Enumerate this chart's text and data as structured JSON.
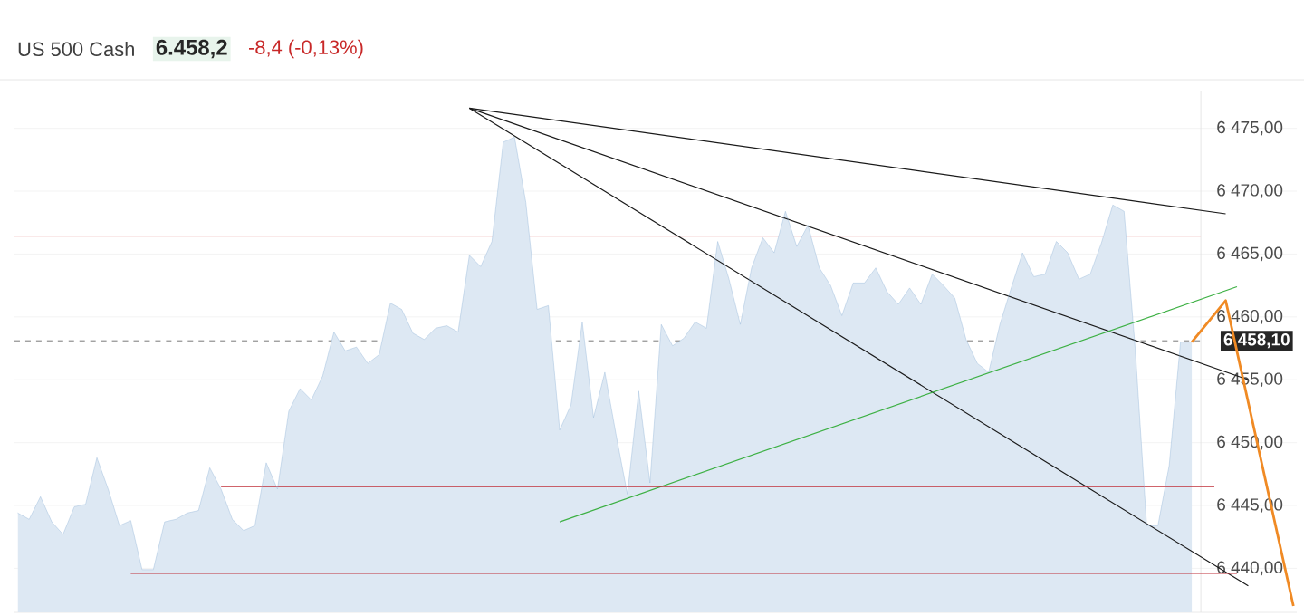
{
  "chart_data": {
    "type": "area",
    "title": "US 500 Cash",
    "annotations": [
      "6.458,2",
      "-8,4 (-0,13%)"
    ],
    "categories": [
      null,
      null,
      null,
      null,
      null,
      null,
      null,
      null,
      null,
      null,
      null,
      null,
      null,
      null,
      null,
      null,
      null,
      null,
      null,
      null,
      null,
      null,
      null,
      null,
      null,
      null,
      null,
      null,
      null,
      null,
      null,
      null,
      null,
      null,
      null,
      null,
      null,
      null,
      null,
      null,
      null,
      null,
      null,
      null,
      null,
      null,
      null,
      null,
      null,
      null,
      null,
      null,
      null,
      null,
      null,
      null,
      null,
      null,
      null,
      null,
      null,
      null,
      null,
      null,
      null,
      null,
      null,
      null,
      null,
      null,
      null,
      null,
      null,
      null,
      null,
      null,
      null,
      null,
      null,
      null,
      null,
      null,
      null,
      null,
      null,
      null,
      null,
      null,
      null,
      null,
      null,
      null,
      null,
      null,
      null,
      null,
      null,
      null,
      null,
      null,
      null,
      null,
      null,
      null,
      null,
      null,
      null,
      null,
      null,
      null,
      null,
      null,
      null,
      null
    ],
    "series": [
      {
        "color": "#8fb3d6",
        "values": [
          6444.4,
          6443.9,
          6445.7,
          6443.7,
          6442.7,
          6444.9,
          6445.1,
          6448.8,
          6446.3,
          6443.4,
          6443.8,
          6439.9,
          6439.9,
          6443.7,
          6443.9,
          6444.4,
          6444.6,
          6448.0,
          6446.3,
          6443.9,
          6443.0,
          6443.4,
          6448.4,
          6446.3,
          6452.5,
          6454.3,
          6453.4,
          6455.3,
          6458.8,
          6457.3,
          6457.6,
          6456.3,
          6457.0,
          6461.1,
          6460.6,
          6458.7,
          6458.2,
          6459.1,
          6459.3,
          6458.8,
          6464.9,
          6464.0,
          6466.0,
          6473.9,
          6474.3,
          6469.1,
          6460.6,
          6460.9,
          6451.0,
          6453.0,
          6459.6,
          6452.0,
          6455.6,
          6450.6,
          6445.9,
          6454.1,
          6446.8,
          6459.4,
          6457.7,
          6458.3,
          6459.6,
          6459.1,
          6466.0,
          6463.0,
          6459.4,
          6463.9,
          6466.3,
          6465.1,
          6468.4,
          6465.6,
          6467.3,
          6463.9,
          6462.5,
          6460.1,
          6462.7,
          6462.7,
          6463.9,
          6462.0,
          6461.0,
          6462.3,
          6461.0,
          6463.4,
          6462.5,
          6461.5,
          6458.2,
          6456.3,
          6455.6,
          6459.4,
          6462.3,
          6465.1,
          6463.2,
          6463.4,
          6466.0,
          6465.1,
          6463.0,
          6463.4,
          6465.9,
          6468.9,
          6468.4,
          6457.3,
          6443.4,
          6443.4,
          6448.2,
          6458.0,
          6458.0,
          null,
          null,
          null,
          null,
          null,
          null,
          null,
          null,
          null
        ]
      },
      {
        "type": "line",
        "color": "#1a1a1a",
        "values": [
          null,
          null,
          null,
          null,
          null,
          null,
          null,
          null,
          null,
          null,
          null,
          null,
          null,
          null,
          null,
          null,
          null,
          null,
          null,
          null,
          null,
          null,
          null,
          null,
          null,
          null,
          null,
          null,
          null,
          null,
          null,
          null,
          null,
          null,
          null,
          null,
          null,
          null,
          null,
          null,
          6476.6,
          null,
          null,
          null,
          null,
          null,
          null,
          null,
          null,
          null,
          null,
          null,
          null,
          null,
          null,
          null,
          null,
          null,
          null,
          null,
          null,
          null,
          null,
          null,
          null,
          null,
          null,
          null,
          null,
          null,
          null,
          null,
          null,
          null,
          null,
          null,
          null,
          null,
          null,
          null,
          null,
          null,
          null,
          null,
          null,
          null,
          null,
          null,
          null,
          null,
          null,
          null,
          null,
          null,
          null,
          null,
          null,
          null,
          null,
          null,
          null,
          null,
          null,
          null,
          null,
          null,
          null,
          6468.2,
          null,
          null,
          null,
          null,
          null,
          null
        ]
      },
      {
        "type": "line",
        "color": "#1a1a1a",
        "values": [
          null,
          null,
          null,
          null,
          null,
          null,
          null,
          null,
          null,
          null,
          null,
          null,
          null,
          null,
          null,
          null,
          null,
          null,
          null,
          null,
          null,
          null,
          null,
          null,
          null,
          null,
          null,
          null,
          null,
          null,
          null,
          null,
          null,
          null,
          null,
          null,
          null,
          null,
          null,
          null,
          6476.6,
          null,
          null,
          null,
          null,
          null,
          null,
          null,
          null,
          null,
          null,
          null,
          null,
          null,
          null,
          null,
          null,
          null,
          null,
          null,
          null,
          null,
          null,
          null,
          null,
          null,
          null,
          null,
          null,
          null,
          null,
          null,
          null,
          null,
          null,
          null,
          null,
          null,
          null,
          null,
          null,
          null,
          null,
          null,
          null,
          null,
          null,
          null,
          null,
          null,
          null,
          null,
          null,
          null,
          null,
          null,
          null,
          null,
          null,
          null,
          null,
          null,
          null,
          null,
          null,
          null,
          null,
          null,
          null,
          6455.0,
          null,
          null,
          null,
          null
        ]
      },
      {
        "type": "line",
        "color": "#1a1a1a",
        "values": [
          null,
          null,
          null,
          null,
          null,
          null,
          null,
          null,
          null,
          null,
          null,
          null,
          null,
          null,
          null,
          null,
          null,
          null,
          null,
          null,
          null,
          null,
          null,
          null,
          null,
          null,
          null,
          null,
          null,
          null,
          null,
          null,
          null,
          null,
          null,
          null,
          null,
          null,
          null,
          null,
          6476.6,
          null,
          null,
          null,
          null,
          null,
          null,
          null,
          null,
          null,
          null,
          null,
          null,
          null,
          null,
          null,
          null,
          null,
          null,
          null,
          null,
          null,
          null,
          null,
          null,
          null,
          null,
          null,
          null,
          null,
          null,
          null,
          null,
          null,
          null,
          null,
          null,
          null,
          null,
          null,
          null,
          null,
          null,
          null,
          null,
          null,
          null,
          null,
          null,
          null,
          null,
          null,
          null,
          null,
          null,
          null,
          null,
          null,
          null,
          null,
          null,
          null,
          null,
          null,
          null,
          null,
          null,
          null,
          null,
          6438.6,
          null,
          null,
          null,
          null
        ]
      },
      {
        "type": "line",
        "color": "#3cb043",
        "values": [
          null,
          null,
          null,
          null,
          null,
          null,
          null,
          null,
          null,
          null,
          null,
          null,
          null,
          null,
          null,
          null,
          null,
          null,
          null,
          null,
          null,
          null,
          null,
          null,
          null,
          null,
          null,
          null,
          null,
          null,
          null,
          null,
          null,
          null,
          null,
          null,
          null,
          null,
          null,
          null,
          null,
          null,
          null,
          null,
          null,
          null,
          null,
          null,
          6443.7,
          null,
          null,
          null,
          null,
          null,
          null,
          null,
          null,
          null,
          null,
          null,
          null,
          null,
          null,
          null,
          null,
          null,
          null,
          null,
          null,
          null,
          null,
          null,
          null,
          null,
          null,
          null,
          null,
          null,
          null,
          null,
          null,
          null,
          null,
          null,
          null,
          null,
          null,
          null,
          null,
          null,
          null,
          null,
          null,
          null,
          null,
          null,
          null,
          null,
          null,
          null,
          null,
          null,
          null,
          null,
          null,
          null,
          null,
          null,
          6462.4,
          null,
          null,
          null,
          null,
          null
        ]
      },
      {
        "type": "line",
        "color": "#c0303a",
        "values": [
          null,
          null,
          null,
          null,
          null,
          null,
          null,
          null,
          null,
          null,
          null,
          null,
          null,
          null,
          null,
          null,
          null,
          null,
          6446.5,
          null,
          null,
          null,
          null,
          null,
          null,
          null,
          null,
          null,
          null,
          null,
          null,
          null,
          null,
          null,
          null,
          null,
          null,
          null,
          null,
          null,
          null,
          null,
          null,
          null,
          null,
          null,
          null,
          null,
          null,
          null,
          null,
          null,
          null,
          null,
          null,
          null,
          null,
          null,
          null,
          null,
          null,
          null,
          null,
          null,
          null,
          null,
          null,
          null,
          null,
          null,
          null,
          null,
          null,
          null,
          null,
          null,
          null,
          null,
          null,
          null,
          null,
          null,
          null,
          null,
          null,
          null,
          null,
          null,
          null,
          null,
          null,
          null,
          null,
          null,
          null,
          null,
          null,
          null,
          null,
          null,
          null,
          null,
          null,
          null,
          null,
          null,
          6446.5,
          null,
          null,
          null,
          null,
          null,
          null,
          null
        ]
      },
      {
        "type": "line",
        "color": "#c0303a",
        "values": [
          null,
          null,
          null,
          null,
          null,
          null,
          null,
          null,
          null,
          null,
          6439.6,
          null,
          null,
          null,
          null,
          null,
          null,
          null,
          null,
          null,
          null,
          null,
          null,
          null,
          null,
          null,
          null,
          null,
          null,
          null,
          null,
          null,
          null,
          null,
          null,
          null,
          null,
          null,
          null,
          null,
          null,
          null,
          null,
          null,
          null,
          null,
          null,
          null,
          null,
          null,
          null,
          null,
          null,
          null,
          null,
          null,
          null,
          null,
          null,
          null,
          null,
          null,
          null,
          null,
          null,
          null,
          null,
          null,
          null,
          null,
          null,
          null,
          null,
          null,
          null,
          null,
          null,
          null,
          null,
          null,
          null,
          null,
          null,
          null,
          null,
          null,
          null,
          null,
          null,
          null,
          null,
          null,
          null,
          null,
          null,
          null,
          null,
          null,
          null,
          null,
          null,
          null,
          null,
          null,
          null,
          null,
          null,
          null,
          6439.6,
          null,
          null,
          null,
          null,
          null
        ]
      },
      {
        "type": "line",
        "color": "#f08a24",
        "values": [
          null,
          null,
          null,
          null,
          null,
          null,
          null,
          null,
          null,
          null,
          null,
          null,
          null,
          null,
          null,
          null,
          null,
          null,
          null,
          null,
          null,
          null,
          null,
          null,
          null,
          null,
          null,
          null,
          null,
          null,
          null,
          null,
          null,
          null,
          null,
          null,
          null,
          null,
          null,
          null,
          null,
          null,
          null,
          null,
          null,
          null,
          null,
          null,
          null,
          null,
          null,
          null,
          null,
          null,
          null,
          null,
          null,
          null,
          null,
          null,
          null,
          null,
          null,
          null,
          null,
          null,
          null,
          null,
          null,
          null,
          null,
          null,
          null,
          null,
          null,
          null,
          null,
          null,
          null,
          null,
          null,
          null,
          null,
          null,
          null,
          null,
          null,
          null,
          null,
          null,
          null,
          null,
          null,
          null,
          null,
          null,
          null,
          null,
          null,
          null,
          null,
          null,
          null,
          null,
          6458.0,
          null,
          null,
          6461.3,
          null,
          null,
          null,
          null,
          null,
          6437.0
        ]
      }
    ],
    "ref_lines": [
      {
        "axis": "y",
        "value": 6466.4,
        "color": "#f4c6c8",
        "line_style": "solid"
      },
      {
        "axis": "y",
        "value": 6458.1,
        "label": "6 458,10",
        "color": "#555555",
        "line_style": "dashed"
      }
    ],
    "ylim": [
      6436.5,
      6478
    ],
    "yticks": [
      {
        "value": 6440,
        "label": "6 440,00"
      },
      {
        "value": 6445,
        "label": "6 445,00"
      },
      {
        "value": 6450,
        "label": "6 450,00"
      },
      {
        "value": 6455,
        "label": "6 455,00"
      },
      {
        "value": 6460,
        "label": "6 460,00"
      },
      {
        "value": 6465,
        "label": "6 465,00"
      },
      {
        "value": 6470,
        "label": "6 470,00"
      },
      {
        "value": 6475,
        "label": "6 475,00"
      }
    ],
    "grid": "y",
    "marker": "none"
  }
}
